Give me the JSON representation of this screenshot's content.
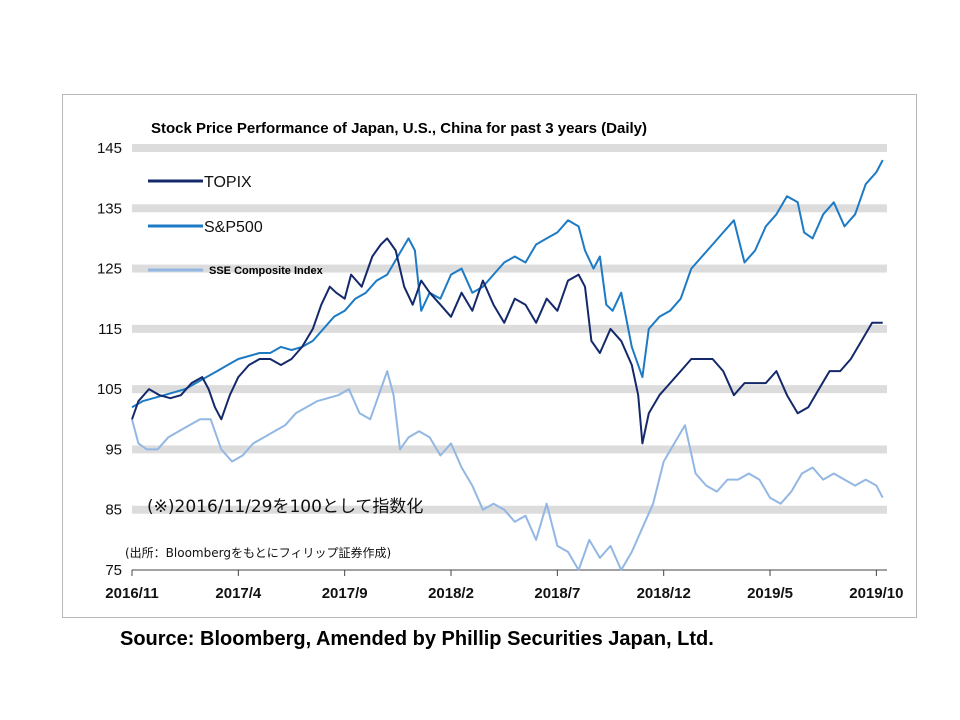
{
  "footer": {
    "source": "Source: Bloomberg, Amended by Phillip Securities Japan, Ltd."
  },
  "chart_data": {
    "type": "line",
    "title": "Stock Price Performance of Japan, U.S., China for past 3 years (Daily)",
    "xlabel": "",
    "ylabel": "",
    "ylim": [
      75,
      145
    ],
    "y_ticks": [
      145,
      135,
      125,
      115,
      105,
      95,
      85,
      75
    ],
    "x_tick_labels": [
      "2016/11",
      "2017/4",
      "2017/9",
      "2018/2",
      "2018/7",
      "2018/12",
      "2019/5",
      "2019/10"
    ],
    "x_range_months": [
      0,
      35.5
    ],
    "grid": "alternating horizontal bands",
    "legend_position": "top-left",
    "note": "(※)2016/11/29を100として指数化",
    "credit": "(出所：Bloombergをもとにフィリップ証券作成)",
    "colors": {
      "topix": "#14296b",
      "sp500": "#1d7ac4",
      "sse": "#93b7e3",
      "band": "#dcdcdc"
    },
    "series": [
      {
        "name": "TOPIX",
        "x": [
          0,
          0.3,
          0.8,
          1.3,
          1.8,
          2.3,
          2.8,
          3.3,
          3.6,
          3.9,
          4.2,
          4.6,
          5.0,
          5.5,
          6.0,
          6.5,
          7.0,
          7.5,
          8.0,
          8.5,
          8.9,
          9.3,
          9.6,
          10.0,
          10.3,
          10.8,
          11.3,
          11.7,
          12.0,
          12.4,
          12.8,
          13.2,
          13.6,
          14.0,
          14.5,
          15.0,
          15.5,
          16.0,
          16.5,
          17.0,
          17.5,
          18.0,
          18.5,
          19.0,
          19.5,
          20.0,
          20.5,
          21.0,
          21.3,
          21.6,
          22.0,
          22.5,
          23.0,
          23.5,
          23.8,
          24.0,
          24.3,
          24.8,
          25.3,
          25.8,
          26.3,
          26.8,
          27.3,
          27.8,
          28.3,
          28.8,
          29.3,
          29.8,
          30.3,
          30.8,
          31.3,
          31.8,
          32.3,
          32.8,
          33.3,
          33.8,
          34.3,
          34.8,
          35.3
        ],
        "values": [
          100,
          103,
          105,
          104,
          103.5,
          104,
          106,
          107,
          105,
          102,
          100,
          104,
          107,
          109,
          110,
          110,
          109,
          110,
          112,
          115,
          119,
          122,
          121,
          120,
          124,
          122,
          127,
          129,
          130,
          128,
          122,
          119,
          123,
          121,
          119,
          117,
          121,
          118,
          123,
          119,
          116,
          120,
          119,
          116,
          120,
          118,
          123,
          124,
          122,
          113,
          111,
          115,
          113,
          109,
          104,
          96,
          101,
          104,
          106,
          108,
          110,
          110,
          110,
          108,
          104,
          106,
          106,
          106,
          108,
          104,
          101,
          102,
          105,
          108,
          108,
          110,
          113,
          116,
          116
        ]
      },
      {
        "name": "S&P500",
        "x": [
          0,
          0.5,
          1.0,
          1.5,
          2.0,
          2.5,
          3.0,
          3.5,
          4.0,
          4.5,
          5.0,
          5.5,
          6.0,
          6.5,
          7.0,
          7.5,
          8.0,
          8.5,
          9.0,
          9.5,
          10.0,
          10.5,
          11.0,
          11.5,
          12.0,
          12.5,
          13.0,
          13.3,
          13.6,
          14.0,
          14.5,
          15.0,
          15.5,
          16.0,
          16.5,
          17.0,
          17.5,
          18.0,
          18.5,
          19.0,
          19.5,
          20.0,
          20.5,
          21.0,
          21.3,
          21.7,
          22.0,
          22.3,
          22.6,
          23.0,
          23.5,
          24.0,
          24.3,
          24.8,
          25.3,
          25.8,
          26.3,
          26.8,
          27.3,
          27.8,
          28.3,
          28.8,
          29.3,
          29.8,
          30.3,
          30.8,
          31.3,
          31.6,
          32.0,
          32.5,
          33.0,
          33.5,
          34.0,
          34.5,
          35.0,
          35.3
        ],
        "values": [
          102,
          103,
          103.5,
          104,
          104.5,
          105,
          106,
          107,
          108,
          109,
          110,
          110.5,
          111,
          111,
          112,
          111.5,
          112,
          113,
          115,
          117,
          118,
          120,
          121,
          123,
          124,
          127,
          130,
          128,
          118,
          121,
          120,
          124,
          125,
          121,
          122,
          124,
          126,
          127,
          126,
          129,
          130,
          131,
          133,
          132,
          128,
          125,
          127,
          119,
          118,
          121,
          112,
          107,
          115,
          117,
          118,
          120,
          125,
          127,
          129,
          131,
          133,
          126,
          128,
          132,
          134,
          137,
          136,
          131,
          130,
          134,
          136,
          132,
          134,
          139,
          141,
          143
        ]
      },
      {
        "name": "SSE Composite Index",
        "x": [
          0,
          0.3,
          0.7,
          1.2,
          1.7,
          2.2,
          2.7,
          3.2,
          3.7,
          4.2,
          4.7,
          5.2,
          5.7,
          6.2,
          6.7,
          7.2,
          7.7,
          8.2,
          8.7,
          9.2,
          9.7,
          10.2,
          10.7,
          11.2,
          11.6,
          12.0,
          12.3,
          12.6,
          13.0,
          13.5,
          14.0,
          14.5,
          15.0,
          15.5,
          16.0,
          16.5,
          17.0,
          17.5,
          18.0,
          18.5,
          19.0,
          19.5,
          20.0,
          20.5,
          21.0,
          21.5,
          22.0,
          22.5,
          23.0,
          23.5,
          24.0,
          24.5,
          25.0,
          25.5,
          26.0,
          26.5,
          27.0,
          27.5,
          28.0,
          28.5,
          29.0,
          29.5,
          30.0,
          30.5,
          31.0,
          31.5,
          32.0,
          32.5,
          33.0,
          33.5,
          34.0,
          34.5,
          35.0,
          35.3
        ],
        "values": [
          100,
          96,
          95,
          95,
          97,
          98,
          99,
          100,
          100,
          95,
          93,
          94,
          96,
          97,
          98,
          99,
          101,
          102,
          103,
          103.5,
          104,
          105,
          101,
          100,
          104,
          108,
          104,
          95,
          97,
          98,
          97,
          94,
          96,
          92,
          89,
          85,
          86,
          85,
          83,
          84,
          80,
          86,
          79,
          78,
          75,
          80,
          77,
          79,
          75,
          78,
          82,
          86,
          93,
          96,
          99,
          91,
          89,
          88,
          90,
          90,
          91,
          90,
          87,
          86,
          88,
          91,
          92,
          90,
          91,
          90,
          89,
          90,
          89,
          87
        ]
      }
    ]
  }
}
